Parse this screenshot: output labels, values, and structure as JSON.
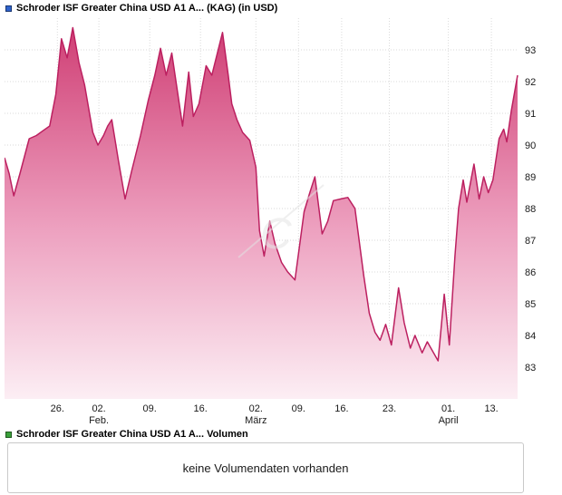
{
  "price_chart": {
    "title": "Schroder ISF Greater China USD A1 A... (KAG) (in USD)",
    "marker_color": "#2f63cc"
  },
  "volume_panel": {
    "title": "Schroder ISF Greater China USD A1 A... Volumen",
    "marker_color": "#3aa13a",
    "empty_message": "keine Volumendaten vorhanden"
  },
  "watermark": {
    "glyph": "C"
  },
  "chart_data": {
    "type": "area",
    "title": "Schroder ISF Greater China USD A1 A... (KAG) (in USD)",
    "unit": "USD",
    "grid": true,
    "legend_position": "top-left",
    "ylim": [
      82,
      94
    ],
    "y_ticks": [
      83,
      84,
      85,
      86,
      87,
      88,
      89,
      90,
      91,
      92,
      93
    ],
    "x_ticks": [
      {
        "f": 0.103,
        "label": "26.",
        "month": ""
      },
      {
        "f": 0.184,
        "label": "02.",
        "month": "Feb."
      },
      {
        "f": 0.283,
        "label": "09.",
        "month": ""
      },
      {
        "f": 0.382,
        "label": "16.",
        "month": ""
      },
      {
        "f": 0.49,
        "label": "02.",
        "month": "März"
      },
      {
        "f": 0.573,
        "label": "09.",
        "month": ""
      },
      {
        "f": 0.657,
        "label": "16.",
        "month": ""
      },
      {
        "f": 0.75,
        "label": "23.",
        "month": ""
      },
      {
        "f": 0.865,
        "label": "01.",
        "month": "April"
      },
      {
        "f": 0.949,
        "label": "13.",
        "month": ""
      }
    ],
    "series": [
      {
        "name": "Schroder ISF Greater China USD A1 A... (KAG)",
        "points": [
          [
            0.0,
            89.6
          ],
          [
            0.009,
            89.1
          ],
          [
            0.018,
            88.4
          ],
          [
            0.03,
            89.1
          ],
          [
            0.048,
            90.2
          ],
          [
            0.062,
            90.3
          ],
          [
            0.075,
            90.45
          ],
          [
            0.088,
            90.6
          ],
          [
            0.1,
            91.6
          ],
          [
            0.111,
            93.35
          ],
          [
            0.122,
            92.75
          ],
          [
            0.133,
            93.7
          ],
          [
            0.145,
            92.6
          ],
          [
            0.156,
            91.9
          ],
          [
            0.172,
            90.4
          ],
          [
            0.182,
            90.0
          ],
          [
            0.193,
            90.3
          ],
          [
            0.201,
            90.6
          ],
          [
            0.209,
            90.8
          ],
          [
            0.222,
            89.5
          ],
          [
            0.235,
            88.3
          ],
          [
            0.248,
            89.2
          ],
          [
            0.265,
            90.3
          ],
          [
            0.28,
            91.4
          ],
          [
            0.293,
            92.2
          ],
          [
            0.304,
            93.05
          ],
          [
            0.315,
            92.2
          ],
          [
            0.326,
            92.9
          ],
          [
            0.336,
            91.8
          ],
          [
            0.347,
            90.6
          ],
          [
            0.359,
            92.3
          ],
          [
            0.368,
            90.9
          ],
          [
            0.379,
            91.3
          ],
          [
            0.393,
            92.5
          ],
          [
            0.404,
            92.2
          ],
          [
            0.425,
            93.55
          ],
          [
            0.436,
            92.2
          ],
          [
            0.443,
            91.3
          ],
          [
            0.453,
            90.8
          ],
          [
            0.464,
            90.4
          ],
          [
            0.478,
            90.15
          ],
          [
            0.49,
            89.3
          ],
          [
            0.497,
            87.3
          ],
          [
            0.506,
            86.5
          ],
          [
            0.517,
            87.6
          ],
          [
            0.527,
            86.9
          ],
          [
            0.54,
            86.3
          ],
          [
            0.552,
            86.0
          ],
          [
            0.566,
            85.75
          ],
          [
            0.584,
            87.9
          ],
          [
            0.595,
            88.5
          ],
          [
            0.605,
            89.0
          ],
          [
            0.619,
            87.2
          ],
          [
            0.63,
            87.6
          ],
          [
            0.641,
            88.25
          ],
          [
            0.655,
            88.3
          ],
          [
            0.669,
            88.35
          ],
          [
            0.683,
            88.0
          ],
          [
            0.7,
            85.9
          ],
          [
            0.711,
            84.7
          ],
          [
            0.722,
            84.1
          ],
          [
            0.732,
            83.85
          ],
          [
            0.743,
            84.35
          ],
          [
            0.754,
            83.7
          ],
          [
            0.768,
            85.5
          ],
          [
            0.779,
            84.4
          ],
          [
            0.791,
            83.6
          ],
          [
            0.8,
            84.0
          ],
          [
            0.814,
            83.45
          ],
          [
            0.824,
            83.8
          ],
          [
            0.845,
            83.2
          ],
          [
            0.857,
            85.3
          ],
          [
            0.867,
            83.7
          ],
          [
            0.878,
            86.5
          ],
          [
            0.885,
            88.0
          ],
          [
            0.894,
            88.9
          ],
          [
            0.901,
            88.2
          ],
          [
            0.915,
            89.4
          ],
          [
            0.925,
            88.3
          ],
          [
            0.934,
            89.0
          ],
          [
            0.943,
            88.5
          ],
          [
            0.952,
            88.9
          ],
          [
            0.964,
            90.2
          ],
          [
            0.973,
            90.5
          ],
          [
            0.979,
            90.1
          ],
          [
            0.988,
            91.1
          ],
          [
            1.0,
            92.2
          ]
        ]
      }
    ],
    "style": {
      "line_color": "#bc2060",
      "grid_color": "#dadada",
      "axis_text_color": "#1a1a1a",
      "gradient_stops": [
        {
          "offset": 0,
          "color": "#ce3a71"
        },
        {
          "offset": 0.55,
          "color": "#eda0bf"
        },
        {
          "offset": 1,
          "color": "#fceef4"
        }
      ]
    }
  }
}
